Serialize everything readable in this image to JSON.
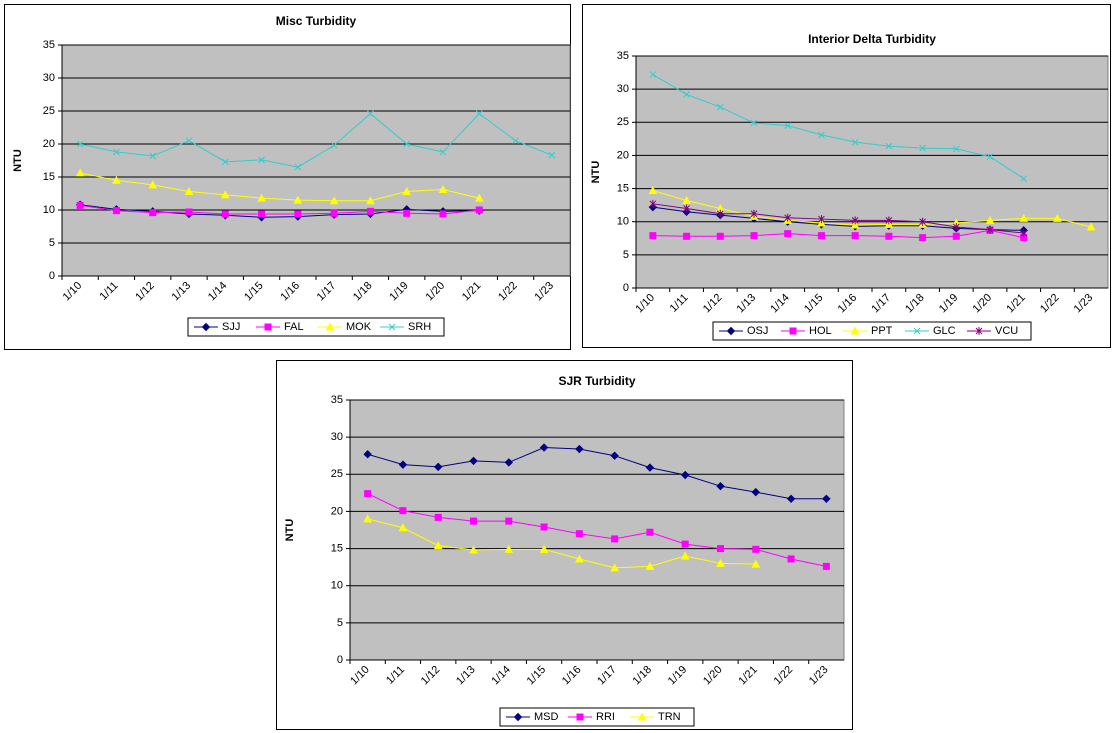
{
  "chart_data": [
    {
      "type": "line",
      "title": "Misc Turbidity",
      "y_label": "NTU",
      "categories": [
        "1/10",
        "1/11",
        "1/12",
        "1/13",
        "1/14",
        "1/15",
        "1/16",
        "1/17",
        "1/18",
        "1/19",
        "1/20",
        "1/21",
        "1/22",
        "1/23"
      ],
      "ylim": [
        0,
        35
      ],
      "yticks": [
        0,
        5,
        10,
        15,
        20,
        25,
        30,
        35
      ],
      "grid": true,
      "series": [
        {
          "name": "SJJ",
          "color": "#000080",
          "marker": "diamond",
          "values": [
            10.8,
            10.1,
            9.8,
            9.4,
            9.2,
            8.9,
            9.0,
            9.3,
            9.4,
            10.1,
            9.8,
            9.9,
            null,
            null
          ]
        },
        {
          "name": "FAL",
          "color": "#FF00FF",
          "marker": "square",
          "values": [
            10.7,
            9.9,
            9.6,
            9.7,
            9.4,
            9.4,
            9.4,
            9.5,
            9.8,
            9.5,
            9.4,
            10.0,
            null,
            null
          ]
        },
        {
          "name": "MOK",
          "color": "#FFFF00",
          "marker": "triangle",
          "values": [
            15.6,
            14.5,
            13.8,
            12.8,
            12.3,
            11.8,
            11.5,
            11.4,
            11.4,
            12.8,
            13.1,
            11.8,
            null,
            null
          ]
        },
        {
          "name": "SRH",
          "color": "#33CCCC",
          "marker": "x",
          "values": [
            20.0,
            18.8,
            18.2,
            20.5,
            17.3,
            17.6,
            16.5,
            19.8,
            24.6,
            20.0,
            18.8,
            24.6,
            20.5,
            18.3
          ]
        }
      ]
    },
    {
      "type": "line",
      "title": "Interior Delta Turbidity",
      "y_label": "NTU",
      "categories": [
        "1/10",
        "1/11",
        "1/12",
        "1/13",
        "1/14",
        "1/15",
        "1/16",
        "1/17",
        "1/18",
        "1/19",
        "1/20",
        "1/21",
        "1/22",
        "1/23"
      ],
      "ylim": [
        0,
        35
      ],
      "yticks": [
        0,
        5,
        10,
        15,
        20,
        25,
        30,
        35
      ],
      "grid": true,
      "series": [
        {
          "name": "OSJ",
          "color": "#000080",
          "marker": "diamond",
          "values": [
            12.2,
            11.5,
            11.0,
            10.5,
            10.0,
            9.6,
            9.3,
            9.4,
            9.4,
            9.0,
            8.8,
            8.7,
            null,
            null
          ]
        },
        {
          "name": "HOL",
          "color": "#FF00FF",
          "marker": "square",
          "values": [
            7.9,
            7.8,
            7.8,
            7.9,
            8.2,
            7.9,
            7.9,
            7.8,
            7.6,
            7.8,
            8.7,
            7.6,
            null,
            null
          ]
        },
        {
          "name": "PPT",
          "color": "#FFFF00",
          "marker": "triangle",
          "values": [
            14.7,
            13.2,
            12.0,
            10.8,
            10.2,
            9.8,
            9.5,
            9.6,
            9.6,
            9.8,
            10.2,
            10.5,
            10.5,
            9.2
          ]
        },
        {
          "name": "GLC",
          "color": "#33CCCC",
          "marker": "x",
          "values": [
            32.2,
            29.2,
            27.3,
            24.9,
            24.5,
            23.1,
            22.0,
            21.4,
            21.1,
            21.0,
            19.8,
            16.5,
            null,
            null
          ]
        },
        {
          "name": "VCU",
          "color": "#800080",
          "marker": "star",
          "values": [
            12.7,
            12.0,
            11.2,
            11.2,
            10.6,
            10.4,
            10.2,
            10.2,
            10.0,
            9.2,
            8.8,
            8.3,
            null,
            null
          ]
        }
      ]
    },
    {
      "type": "line",
      "title": "SJR Turbidity",
      "y_label": "NTU",
      "categories": [
        "1/10",
        "1/11",
        "1/12",
        "1/13",
        "1/14",
        "1/15",
        "1/16",
        "1/17",
        "1/18",
        "1/19",
        "1/20",
        "1/21",
        "1/22",
        "1/23"
      ],
      "ylim": [
        0,
        35
      ],
      "yticks": [
        0,
        5,
        10,
        15,
        20,
        25,
        30,
        35
      ],
      "grid": true,
      "series": [
        {
          "name": "MSD",
          "color": "#000080",
          "marker": "diamond",
          "values": [
            27.7,
            26.3,
            26.0,
            26.8,
            26.6,
            28.6,
            28.4,
            27.5,
            25.9,
            24.9,
            23.4,
            22.6,
            21.7,
            21.7
          ]
        },
        {
          "name": "RRI",
          "color": "#FF00FF",
          "marker": "square",
          "values": [
            22.4,
            20.1,
            19.2,
            18.7,
            18.7,
            17.9,
            17.0,
            16.3,
            17.2,
            15.6,
            15.0,
            14.9,
            13.6,
            12.6
          ]
        },
        {
          "name": "TRN",
          "color": "#FFFF00",
          "marker": "triangle",
          "values": [
            19.0,
            17.8,
            15.4,
            14.8,
            14.9,
            14.9,
            13.6,
            12.4,
            12.6,
            14.0,
            13.0,
            12.9,
            null,
            null
          ]
        }
      ]
    }
  ]
}
